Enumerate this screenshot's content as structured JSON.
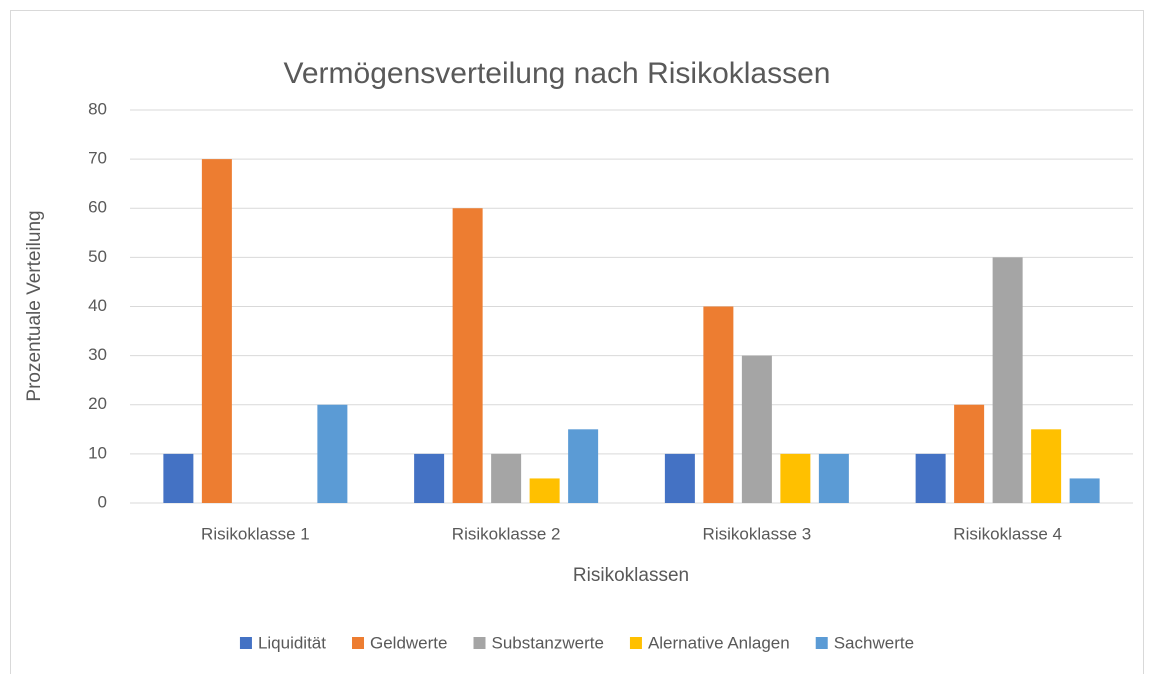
{
  "chart_data": {
    "type": "bar",
    "title": "Vermögensverteilung nach Risikoklassen",
    "x_label": "Risikoklassen",
    "y_label": "Prozentuale Verteilung",
    "categories": [
      "Risikoklasse 1",
      "Risikoklasse 2",
      "Risikoklasse 3",
      "Risikoklasse 4"
    ],
    "series": [
      {
        "name": "Liquidität",
        "color": "#4472c4",
        "values": [
          10,
          10,
          10,
          10
        ]
      },
      {
        "name": "Geldwerte",
        "color": "#ed7d31",
        "values": [
          70,
          60,
          40,
          20
        ]
      },
      {
        "name": "Substanzwerte",
        "color": "#a5a5a5",
        "values": [
          0,
          10,
          30,
          50
        ]
      },
      {
        "name": "Alernative Anlagen",
        "color": "#ffc000",
        "values": [
          0,
          5,
          10,
          15
        ]
      },
      {
        "name": "Sachwerte",
        "color": "#5b9bd5",
        "values": [
          20,
          15,
          10,
          5
        ]
      }
    ],
    "ylim": [
      0,
      80
    ],
    "yticks": [
      0,
      10,
      20,
      30,
      40,
      50,
      60,
      70,
      80
    ],
    "grid": true,
    "legend": "bottom"
  }
}
